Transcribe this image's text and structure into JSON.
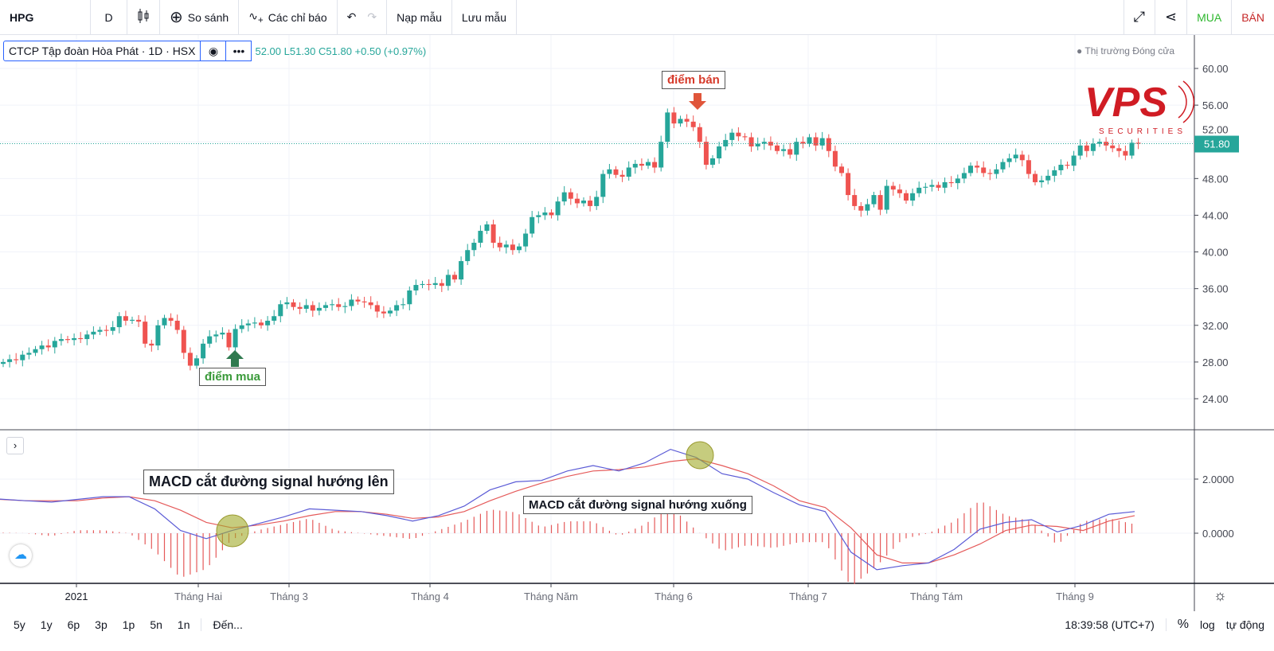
{
  "toolbar": {
    "symbol": "HPG",
    "interval": "D",
    "compare": "So sánh",
    "indicators": "Các chỉ báo",
    "load_layout": "Nạp mẫu",
    "save_layout": "Lưu mẫu",
    "buy": "MUA",
    "sell": "BÁN"
  },
  "legend": {
    "title": "CTCP Tập đoàn Hòa Phát · 1D · HSX",
    "values": "52.00  L51.30  C51.80  +0.50 (+0.97%)"
  },
  "market_status": "Thị trường Đóng cửa",
  "logo": {
    "text": "VPS",
    "sub": "SECURITIES"
  },
  "annotations": {
    "buy_point": "điểm mua",
    "sell_point": "điểm bán",
    "macd_cross_up": "MACD cắt đường signal hướng lên",
    "macd_cross_down": "MACD cắt đường signal hướng xuống"
  },
  "colors": {
    "up": "#26a69a",
    "down": "#ef5350",
    "macd": "#5b5bd6",
    "signal": "#e55a5a",
    "buy_label": "#3a9a3a",
    "sell_label": "#d63a2a",
    "buy_arrow": "#2f7a4f",
    "sell_arrow": "#e0553a"
  },
  "bottom": {
    "ranges": [
      "5y",
      "1y",
      "6p",
      "3p",
      "1p",
      "5n",
      "1n"
    ],
    "goto": "Đến...",
    "time": "18:39:58 (UTC+7)",
    "percent": "%",
    "log": "log",
    "auto": "tự động"
  },
  "chart_data": [
    {
      "type": "candlestick",
      "last_price": "51.80",
      "ylim": [
        22,
        62
      ],
      "y_ticks": [
        "60.00",
        "56.00",
        "52.00",
        "48.00",
        "44.00",
        "40.00",
        "36.00",
        "32.00",
        "28.00",
        "24.00"
      ],
      "x_ticks": [
        "2021",
        "Tháng Hai",
        "Tháng 3",
        "Tháng 4",
        "Tháng Năm",
        "Tháng 6",
        "Tháng 7",
        "Tháng Tám",
        "Tháng 9"
      ],
      "closes": [
        28.0,
        28.3,
        28.2,
        28.8,
        29.0,
        29.4,
        29.8,
        29.6,
        30.3,
        30.5,
        30.4,
        30.6,
        30.5,
        31.0,
        31.3,
        31.5,
        31.4,
        31.8,
        33.0,
        32.5,
        32.6,
        32.4,
        30.0,
        29.8,
        32.0,
        32.8,
        32.5,
        31.5,
        29.0,
        27.6,
        28.4,
        30.0,
        30.8,
        31.0,
        31.2,
        29.6,
        31.6,
        32.0,
        32.2,
        32.3,
        32.0,
        32.5,
        33.0,
        34.3,
        34.5,
        34.0,
        33.8,
        34.2,
        33.6,
        33.9,
        34.2,
        34.3,
        34.0,
        34.1,
        34.8,
        34.6,
        34.5,
        34.2,
        33.5,
        33.3,
        33.6,
        34.2,
        34.3,
        35.8,
        36.4,
        36.5,
        36.4,
        36.6,
        36.3,
        37.5,
        37.0,
        39.0,
        40.2,
        41.0,
        42.3,
        43.0,
        41.0,
        40.5,
        40.8,
        40.2,
        40.6,
        42.0,
        43.8,
        44.0,
        44.3,
        44.0,
        45.5,
        46.5,
        45.8,
        45.3,
        45.6,
        45.0,
        46.0,
        48.5,
        49.0,
        48.4,
        48.2,
        49.2,
        49.6,
        49.4,
        49.8,
        49.2,
        52.0,
        55.2,
        54.0,
        54.5,
        54.2,
        53.6,
        52.0,
        49.5,
        50.2,
        51.5,
        52.2,
        53.0,
        52.6,
        52.5,
        51.5,
        51.8,
        52.0,
        51.6,
        51.0,
        51.2,
        50.6,
        52.0,
        51.8,
        52.5,
        51.6,
        52.4,
        51.0,
        49.3,
        48.6,
        46.2,
        45.0,
        44.5,
        45.2,
        46.2,
        44.6,
        47.2,
        46.8,
        46.4,
        45.6,
        46.4,
        47.0,
        47.1,
        47.3,
        47.0,
        47.6,
        47.5,
        48.0,
        48.6,
        49.4,
        49.2,
        48.6,
        48.5,
        49.0,
        49.8,
        50.2,
        50.6,
        50.0,
        48.5,
        47.6,
        47.8,
        48.3,
        48.9,
        49.5,
        49.4,
        50.5,
        51.6,
        51.0,
        51.8,
        52.0,
        51.6,
        51.3,
        51.0,
        50.5,
        51.9,
        51.8
      ]
    },
    {
      "type": "line",
      "name": "MACD",
      "ylim": [
        -2.0,
        3.6
      ],
      "y_ticks": [
        "2.0000",
        "0.0000"
      ],
      "macd": [
        1.26,
        1.2,
        1.15,
        1.25,
        1.35,
        1.35,
        0.9,
        0.1,
        -0.2,
        0.1,
        0.35,
        0.6,
        0.9,
        0.85,
        0.8,
        0.65,
        0.45,
        0.65,
        1.0,
        1.6,
        1.9,
        1.95,
        2.3,
        2.5,
        2.3,
        2.6,
        3.1,
        2.8,
        2.2,
        2.0,
        1.5,
        1.05,
        0.8,
        -0.7,
        -1.35,
        -1.2,
        -1.1,
        -0.6,
        0.15,
        0.4,
        0.5,
        0.05,
        0.3,
        0.7,
        0.8
      ],
      "signal": [
        1.25,
        1.2,
        1.2,
        1.2,
        1.3,
        1.35,
        1.2,
        0.85,
        0.4,
        0.2,
        0.3,
        0.45,
        0.65,
        0.8,
        0.8,
        0.7,
        0.55,
        0.6,
        0.8,
        1.2,
        1.55,
        1.85,
        2.1,
        2.3,
        2.35,
        2.45,
        2.65,
        2.75,
        2.5,
        2.2,
        1.75,
        1.2,
        0.95,
        0.2,
        -0.8,
        -1.1,
        -1.1,
        -0.8,
        -0.4,
        0.1,
        0.3,
        0.25,
        0.1,
        0.45,
        0.65
      ]
    }
  ]
}
